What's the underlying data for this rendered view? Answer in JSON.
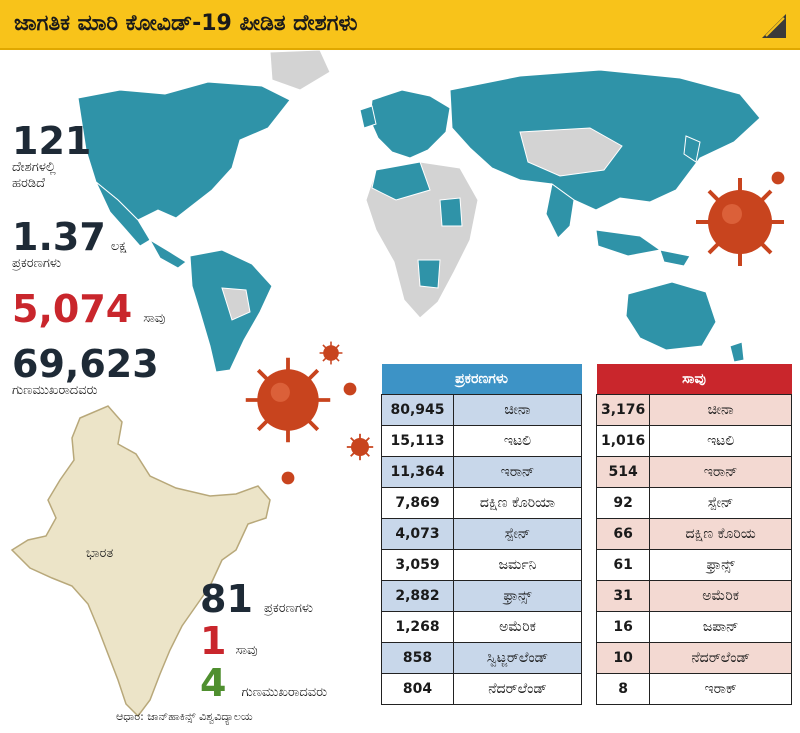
{
  "header": {
    "title": "ಜಾಗತಿಕ ಮಾರಿ ಕೋವಿಡ್‌-19 ಪೀಡಿತ ದೇಶಗಳು"
  },
  "world_stats": {
    "countries": {
      "value": "121",
      "label_line1": "ದೇಶಗಳಲ್ಲಿ",
      "label_line2": "ಹರಡಿದೆ"
    },
    "cases": {
      "value": "1.37",
      "unit": "ಲಕ್ಷ",
      "label": "ಪ್ರಕರಣಗಳು"
    },
    "deaths": {
      "value": "5,074",
      "label": "ಸಾವು"
    },
    "recovered": {
      "value": "69,623",
      "label": "ಗುಣಮುಖರಾದವರು"
    }
  },
  "india": {
    "label": "ಭಾರತ",
    "cases": {
      "value": "81",
      "label": "ಪ್ರಕರಣಗಳು"
    },
    "deaths": {
      "value": "1",
      "label": "ಸಾವು"
    },
    "recovered": {
      "value": "4",
      "label": "ಗುಣಮುಖರಾದವರು"
    }
  },
  "source": "ಆಧಾರ: ಜಾನ್‌ಹಾಕಿನ್ಸ್‌ ವಿಶ್ವವಿದ್ಯಾಲಯ",
  "cases_table": {
    "header": "ಪ್ರಕರಣಗಳು",
    "rows": [
      {
        "value": "80,945",
        "country": "ಚೀನಾ"
      },
      {
        "value": "15,113",
        "country": "ಇಟಲಿ"
      },
      {
        "value": "11,364",
        "country": "ಇರಾನ್‌"
      },
      {
        "value": "7,869",
        "country": "ದಕ್ಷಿಣ ಕೊರಿಯಾ"
      },
      {
        "value": "4,073",
        "country": "ಸ್ಪೇನ್‌"
      },
      {
        "value": "3,059",
        "country": "ಜರ್ಮನಿ"
      },
      {
        "value": "2,882",
        "country": "ಫ್ರಾನ್ಸ್‌"
      },
      {
        "value": "1,268",
        "country": "ಅಮೆರಿಕ"
      },
      {
        "value": "858",
        "country": "ಸ್ವಿಟ್ಜರ್‌ಲೆಂಡ್‌"
      },
      {
        "value": "804",
        "country": "ನೆದರ್‌ಲೆಂಡ್‌"
      }
    ]
  },
  "deaths_table": {
    "header": "ಸಾವು",
    "rows": [
      {
        "value": "3,176",
        "country": "ಚೀನಾ"
      },
      {
        "value": "1,016",
        "country": "ಇಟಲಿ"
      },
      {
        "value": "514",
        "country": "ಇರಾನ್‌"
      },
      {
        "value": "92",
        "country": "ಸ್ಪೇನ್‌"
      },
      {
        "value": "66",
        "country": "ದಕ್ಷಿಣ ಕೊರಿಯ"
      },
      {
        "value": "61",
        "country": "ಫ್ರಾನ್ಸ್‌"
      },
      {
        "value": "31",
        "country": "ಅಮೆರಿಕ"
      },
      {
        "value": "16",
        "country": "ಜಪಾನ್‌"
      },
      {
        "value": "10",
        "country": "ನೆದರ್‌ಲೆಂಡ್‌"
      },
      {
        "value": "8",
        "country": "ಇರಾಕ್‌"
      }
    ]
  },
  "colors": {
    "banner": "#f8c31a",
    "affected": "#2f93a8",
    "unaffected": "#d3d3d3",
    "india_fill": "#ece4c8",
    "cases_header": "#3d93c6",
    "deaths_header": "#c9262c",
    "virus": "#c8441e"
  }
}
